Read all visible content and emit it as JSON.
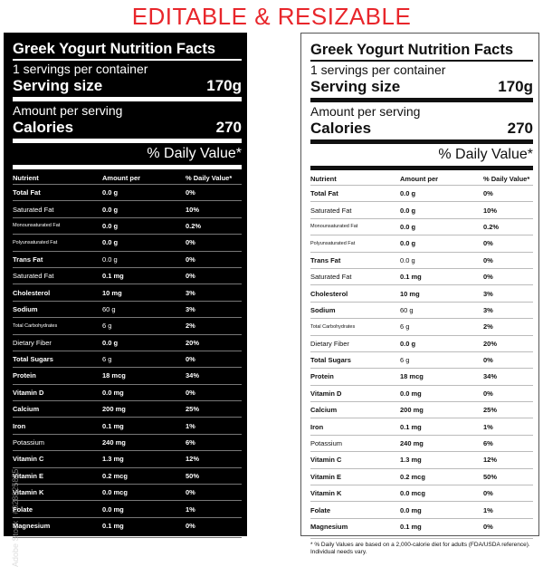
{
  "headline": "EDITABLE & RESIZABLE",
  "label": {
    "title": "Greek Yogurt Nutrition Facts",
    "servings": "1 servings per container",
    "serving_size_label": "Serving size",
    "serving_size_value": "170g",
    "amount_per_serving": "Amount per serving",
    "calories_label": "Calories",
    "calories_value": "270",
    "daily_value_heading": "% Daily Value*",
    "columns": [
      "Nutrient",
      "Amount per",
      "% Daily Value*"
    ],
    "rows": [
      {
        "name": "Total Fat",
        "amount": "0.0 g",
        "dv": "0%"
      },
      {
        "name": "Saturated Fat",
        "amount": "0.0 g",
        "dv": "10%"
      },
      {
        "name": "Monounsaturated Fat",
        "amount": "0.0 g",
        "dv": "0.2%"
      },
      {
        "name": "Polyunsaturated Fat",
        "amount": "0.0 g",
        "dv": "0%"
      },
      {
        "name": "Trans Fat",
        "amount": "0.0 g",
        "dv": "0%"
      },
      {
        "name": "Saturated Fat",
        "amount": "0.1 mg",
        "dv": "0%"
      },
      {
        "name": "Cholesterol",
        "amount": "10 mg",
        "dv": "3%"
      },
      {
        "name": "Sodium",
        "amount": "60 g",
        "dv": "3%"
      },
      {
        "name": "Total Carbohydrates",
        "amount": "6 g",
        "dv": "2%"
      },
      {
        "name": "Dietary Fiber",
        "amount": "0.0 g",
        "dv": "20%"
      },
      {
        "name": "Total Sugars",
        "amount": "6 g",
        "dv": "0%"
      },
      {
        "name": "Protein",
        "amount": "18 mcg",
        "dv": "34%"
      },
      {
        "name": "Vitamin D",
        "amount": "0.0 mg",
        "dv": "0%"
      },
      {
        "name": "Calcium",
        "amount": "200 mg",
        "dv": "25%"
      },
      {
        "name": "Iron",
        "amount": "0.1 mg",
        "dv": "1%"
      },
      {
        "name": "Potassium",
        "amount": "240 mg",
        "dv": "6%"
      },
      {
        "name": "Vitamin C",
        "amount": "1.3 mg",
        "dv": "12%"
      },
      {
        "name": "Vitamin E",
        "amount": "0.2 mcg",
        "dv": "50%"
      },
      {
        "name": "Vitamin K",
        "amount": "0.0 mcg",
        "dv": "0%"
      },
      {
        "name": "Folate",
        "amount": "0.0 mg",
        "dv": "1%"
      },
      {
        "name": "Magnesium",
        "amount": "0.1 mg",
        "dv": "0%"
      }
    ],
    "footnote": "* % Daily Values are based on a 2,000-calorie diet for adults (FDA/USDA reference). Individual needs vary."
  },
  "watermark": "Adobe Stock | #828825855"
}
